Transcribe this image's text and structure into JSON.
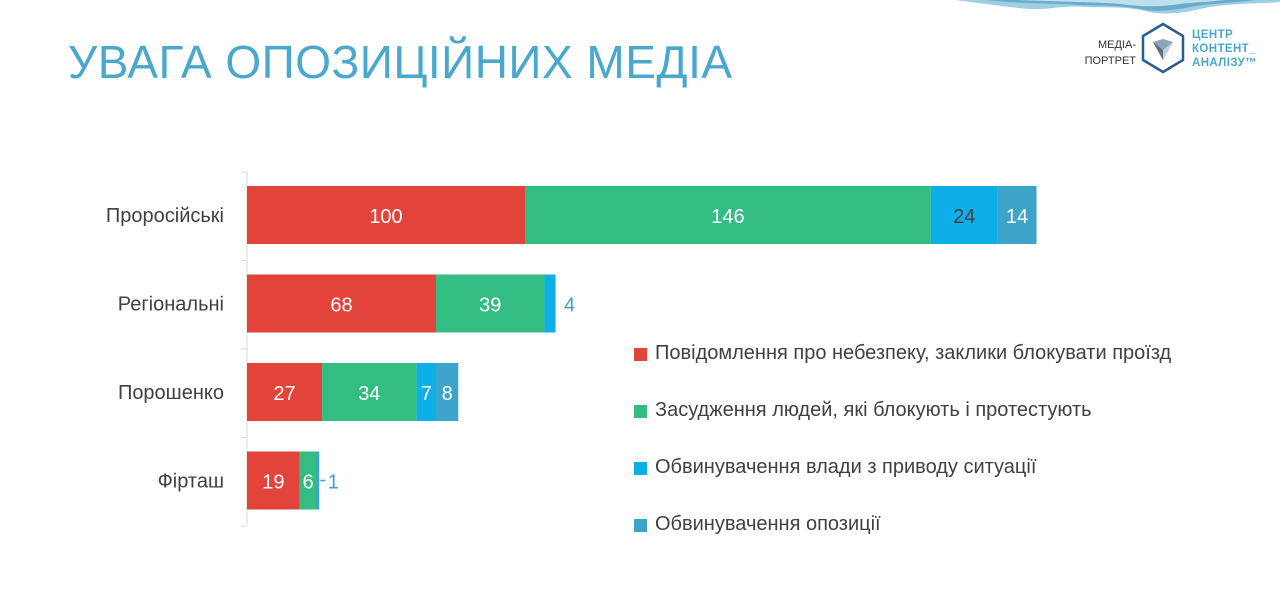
{
  "slide": {
    "title": "УВАГА ОПОЗИЦІЙНИХ МЕДІА"
  },
  "brand": {
    "left_line1": "МЕДІА-",
    "left_line2": "ПОРТРЕТ",
    "right_line1": "ЦЕНТР",
    "right_line2": "КОНТЕНТ_",
    "right_line3": "АНАЛІЗУ™",
    "logo_icon": "center-content-analysis-logo-icon",
    "accent_color": "#4aa8cd"
  },
  "chart_data": {
    "type": "bar",
    "orientation": "horizontal",
    "stacked": true,
    "categories": [
      "Проросійські",
      "Регіональні",
      "Порошенко",
      "Фірташ"
    ],
    "series": [
      {
        "name": "Повідомлення про небезпеку, заклики блокувати проїзд",
        "color": "#e2433b",
        "values": [
          100,
          68,
          27,
          19
        ]
      },
      {
        "name": "Засудження людей, які блокують і протестують",
        "color": "#33bd82",
        "values": [
          146,
          39,
          34,
          6
        ]
      },
      {
        "name": "Обвинувачення влади з приводу ситуації",
        "color": "#0eaee9",
        "values": [
          24,
          4,
          7,
          0
        ]
      },
      {
        "name": "Обвинувачення опозиції",
        "color": "#3ea3c8",
        "values": [
          14,
          0,
          8,
          1
        ]
      }
    ],
    "data_labels": true,
    "legend": "right",
    "grid": false
  }
}
